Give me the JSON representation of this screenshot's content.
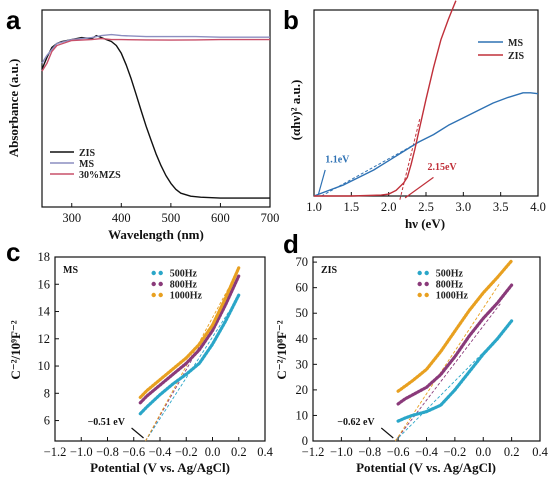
{
  "chart_data": [
    {
      "panel": "a",
      "type": "line",
      "xlabel": "Wavelength (nm)",
      "ylabel": "Absorbance (a.u.)",
      "xlim": [
        240,
        700
      ],
      "ylim": [
        0,
        1
      ],
      "xticks": [
        "300",
        "400",
        "500",
        "600",
        "700"
      ],
      "legend_position": "bottom-left",
      "series": [
        {
          "name": "ZIS",
          "color": "#111111",
          "x": [
            240,
            250,
            260,
            270,
            280,
            290,
            300,
            320,
            340,
            350,
            360,
            370,
            380,
            390,
            400,
            410,
            420,
            430,
            440,
            450,
            460,
            470,
            480,
            490,
            500,
            510,
            520,
            540,
            560,
            600,
            650,
            700
          ],
          "y": [
            0.7,
            0.76,
            0.81,
            0.83,
            0.84,
            0.845,
            0.85,
            0.86,
            0.855,
            0.87,
            0.86,
            0.85,
            0.84,
            0.82,
            0.78,
            0.72,
            0.65,
            0.57,
            0.49,
            0.41,
            0.34,
            0.27,
            0.21,
            0.16,
            0.12,
            0.09,
            0.07,
            0.055,
            0.05,
            0.045,
            0.045,
            0.045
          ]
        },
        {
          "name": "MS",
          "color": "#8c8ec0",
          "x": [
            240,
            250,
            270,
            300,
            340,
            360,
            380,
            400,
            450,
            500,
            550,
            600,
            650,
            700
          ],
          "y": [
            0.73,
            0.77,
            0.83,
            0.85,
            0.86,
            0.87,
            0.875,
            0.87,
            0.865,
            0.865,
            0.865,
            0.862,
            0.862,
            0.862
          ]
        },
        {
          "name": "30%MZS",
          "color": "#c8506a",
          "x": [
            240,
            250,
            260,
            270,
            300,
            340,
            360,
            380,
            400,
            450,
            500,
            550,
            600,
            650,
            700
          ],
          "y": [
            0.69,
            0.73,
            0.79,
            0.82,
            0.845,
            0.85,
            0.855,
            0.85,
            0.85,
            0.848,
            0.847,
            0.848,
            0.85,
            0.85,
            0.85
          ]
        }
      ]
    },
    {
      "panel": "b",
      "type": "line",
      "xlabel": "hν (eV)",
      "ylabel": "(αhν)² a.u.)",
      "xlim": [
        1.0,
        4.0
      ],
      "ylim": [
        0,
        1
      ],
      "xticks": [
        "1.0",
        "1.5",
        "2.0",
        "2.5",
        "3.0",
        "3.5",
        "4.0"
      ],
      "legend_position": "top-right",
      "series": [
        {
          "name": "MS",
          "color": "#2f72b4",
          "x": [
            1.0,
            1.2,
            1.4,
            1.6,
            1.8,
            2.0,
            2.2,
            2.4,
            2.6,
            2.8,
            3.0,
            3.2,
            3.4,
            3.6,
            3.8,
            3.9,
            4.0
          ],
          "y": [
            0.0,
            0.03,
            0.06,
            0.1,
            0.14,
            0.19,
            0.24,
            0.29,
            0.33,
            0.38,
            0.42,
            0.46,
            0.5,
            0.53,
            0.555,
            0.555,
            0.55
          ]
        },
        {
          "name": "ZIS",
          "color": "#c0303a",
          "x": [
            1.0,
            1.5,
            1.9,
            2.0,
            2.1,
            2.2,
            2.25,
            2.3,
            2.35,
            2.4,
            2.5,
            2.6,
            2.7,
            2.8,
            2.85,
            2.9
          ],
          "y": [
            0.0,
            0.0,
            0.005,
            0.01,
            0.03,
            0.07,
            0.1,
            0.17,
            0.25,
            0.34,
            0.52,
            0.69,
            0.84,
            0.95,
            1.0,
            1.05
          ]
        }
      ],
      "annotations": [
        {
          "text": "1.1eV",
          "color": "#2f72b4",
          "x": 1.1
        },
        {
          "text": "2.15eV",
          "color": "#c0303a",
          "x": 2.15
        }
      ]
    },
    {
      "panel": "c",
      "type": "line",
      "xlabel": "Potential (V vs. Ag/AgCl)",
      "ylabel": "C⁻²/10⁹F⁻²",
      "xlim": [
        -1.2,
        0.4
      ],
      "ylim": [
        4.5,
        18
      ],
      "xticks": [
        "−1.2",
        "−1.0",
        "−0.8",
        "−0.6",
        "−0.4",
        "−0.2",
        "0.0",
        "0.2",
        "0.4"
      ],
      "yticks": [
        "6",
        "8",
        "10",
        "12",
        "14",
        "16",
        "18"
      ],
      "sample_label": "MS",
      "legend_position": "top-center",
      "series": [
        {
          "name": "500Hz",
          "color": "#2aa6c8",
          "x": [
            -0.55,
            -0.5,
            -0.4,
            -0.3,
            -0.2,
            -0.1,
            0.0,
            0.1,
            0.2
          ],
          "y": [
            6.5,
            7.0,
            7.9,
            8.7,
            9.4,
            10.2,
            11.6,
            13.3,
            15.2
          ]
        },
        {
          "name": "800Hz",
          "color": "#8a3a7a",
          "x": [
            -0.55,
            -0.5,
            -0.4,
            -0.3,
            -0.2,
            -0.1,
            0.0,
            0.1,
            0.2
          ],
          "y": [
            7.3,
            7.8,
            8.6,
            9.4,
            10.2,
            11.2,
            12.6,
            14.5,
            16.6
          ]
        },
        {
          "name": "1000Hz",
          "color": "#e8a020",
          "x": [
            -0.55,
            -0.5,
            -0.4,
            -0.3,
            -0.2,
            -0.1,
            0.0,
            0.1,
            0.2
          ],
          "y": [
            7.7,
            8.2,
            9.0,
            9.8,
            10.6,
            11.6,
            13.0,
            15.0,
            17.2
          ]
        }
      ],
      "annotations": [
        {
          "text": "−0.51 eV",
          "color": "#111111",
          "x": -0.51
        }
      ]
    },
    {
      "panel": "d",
      "type": "line",
      "xlabel": "Potential (V vs. Ag/AgCl)",
      "ylabel": "C⁻²/10⁸F⁻²",
      "xlim": [
        -1.2,
        0.4
      ],
      "ylim": [
        0,
        72
      ],
      "xticks": [
        "−1.2",
        "−1.0",
        "−0.8",
        "−0.6",
        "−0.4",
        "−0.2",
        "0.0",
        "0.2",
        "0.4"
      ],
      "yticks": [
        "0",
        "10",
        "20",
        "30",
        "40",
        "50",
        "60",
        "70"
      ],
      "sample_label": "ZIS",
      "legend_position": "top-center",
      "series": [
        {
          "name": "500Hz",
          "color": "#2aa6c8",
          "x": [
            -0.6,
            -0.55,
            -0.5,
            -0.4,
            -0.3,
            -0.2,
            -0.1,
            0.0,
            0.1,
            0.2
          ],
          "y": [
            7.8,
            9.0,
            10.0,
            11.5,
            14.0,
            20.0,
            27.0,
            34.0,
            40.0,
            47.0
          ]
        },
        {
          "name": "800Hz",
          "color": "#8a3a7a",
          "x": [
            -0.6,
            -0.55,
            -0.5,
            -0.4,
            -0.3,
            -0.2,
            -0.1,
            0.0,
            0.1,
            0.2
          ],
          "y": [
            14.5,
            16.5,
            18.0,
            21.0,
            26.0,
            33.0,
            41.0,
            48.0,
            54.0,
            61.0
          ]
        },
        {
          "name": "1000Hz",
          "color": "#e8a020",
          "x": [
            -0.6,
            -0.55,
            -0.5,
            -0.4,
            -0.3,
            -0.2,
            -0.1,
            0.0,
            0.1,
            0.2
          ],
          "y": [
            19.5,
            21.5,
            23.5,
            28.0,
            35.0,
            43.0,
            51.0,
            58.0,
            64.0,
            70.5
          ]
        }
      ],
      "annotations": [
        {
          "text": "−0.62 eV",
          "color": "#111111",
          "x": -0.62
        }
      ]
    }
  ]
}
